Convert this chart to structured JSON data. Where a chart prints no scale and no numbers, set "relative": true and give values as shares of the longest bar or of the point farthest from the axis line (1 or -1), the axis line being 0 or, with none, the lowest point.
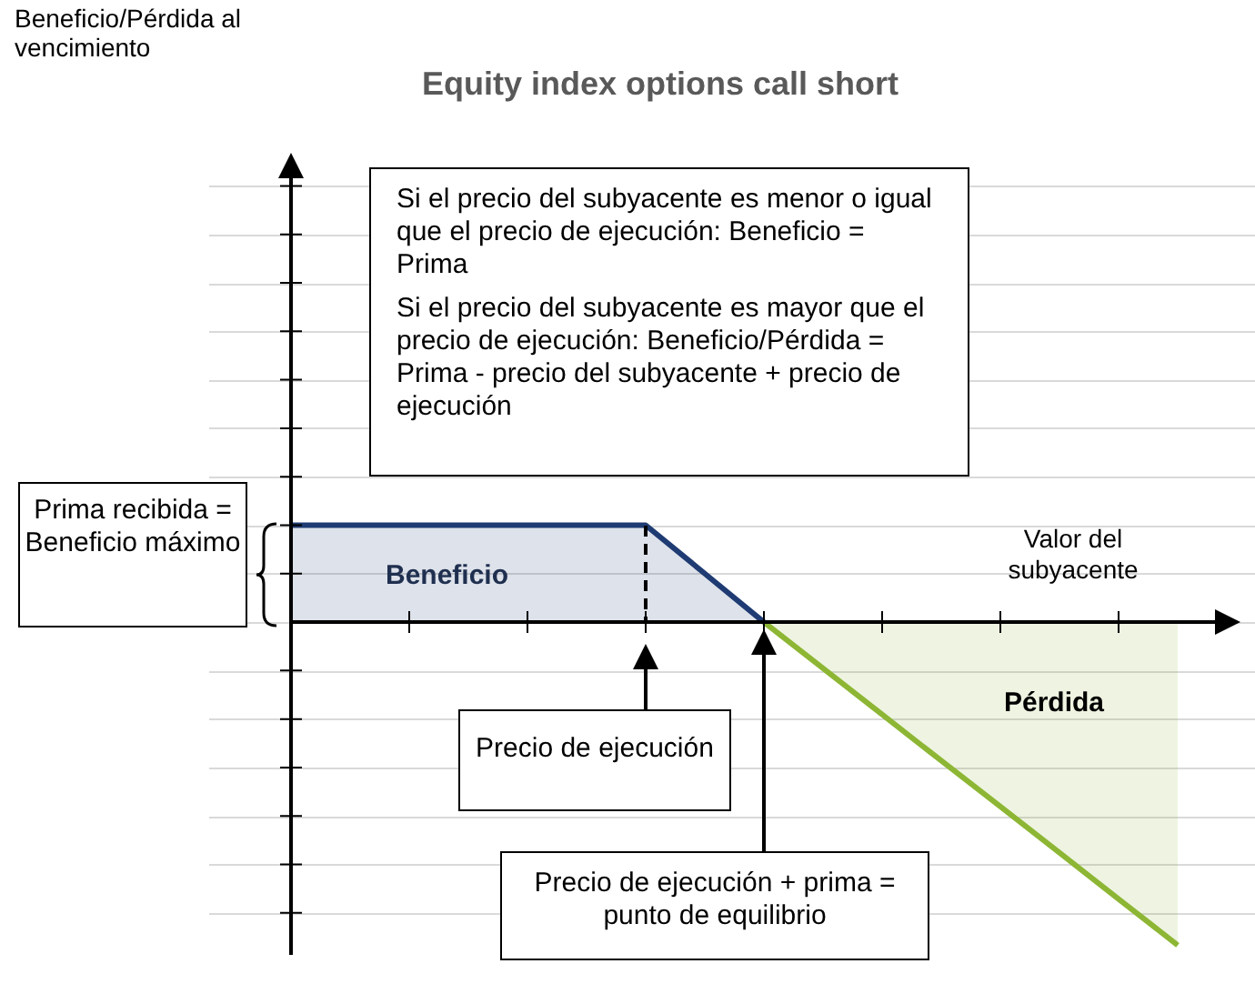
{
  "chart_data": {
    "type": "area",
    "title": "Equity index options call short",
    "xlabel": "Valor del subyacente",
    "relative": true,
    "grid": "y",
    "legend": false,
    "marker": "none",
    "tick_labels": false,
    "categories": [
      null,
      null,
      null,
      null,
      null,
      null,
      null,
      null,
      null,
      null,
      null,
      null,
      null,
      null,
      null,
      null,
      null
    ],
    "series": [
      {
        "color": "#1f3b73",
        "values": [
          0.3,
          0.3,
          0.3,
          0.3,
          0.3,
          0.3,
          0.3,
          0.15,
          0,
          null,
          null,
          null,
          null,
          null,
          null,
          null,
          null
        ]
      },
      {
        "color": "#8db634",
        "values": [
          null,
          null,
          null,
          null,
          null,
          null,
          null,
          null,
          0,
          -0.143,
          -0.286,
          -0.429,
          -0.571,
          -0.714,
          -0.857,
          -1,
          null
        ]
      }
    ],
    "annotations": [
      "Beneficio/Pérdida al vencimiento",
      "Si el precio del subyacente es menor o igual que el precio de ejecución: Beneficio = Prima",
      "Si el precio del subyacente es mayor que el precio de ejecución: Beneficio/Pérdida = Prima - precio del subyacente + precio de ejecución",
      "Prima recibida = Beneficio máximo",
      "Beneficio",
      "Pérdida",
      "Precio de ejecución",
      "Precio de ejecución + prima = punto de equilibrio"
    ]
  }
}
